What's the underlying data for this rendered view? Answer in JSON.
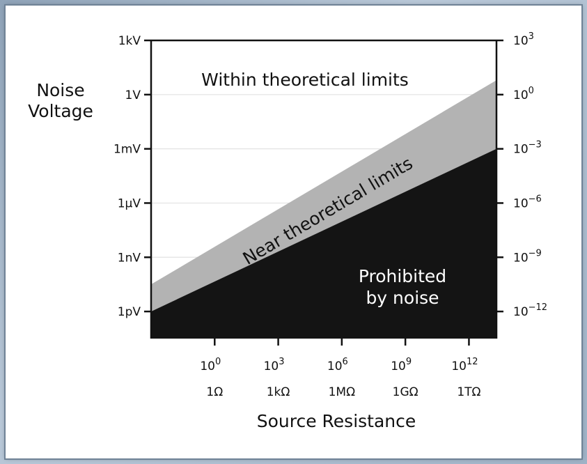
{
  "chart_data": {
    "type": "area",
    "ylabel": [
      "Noise",
      "Voltage"
    ],
    "xlabel": "Source Resistance",
    "x_scale": "log",
    "y_scale": "log",
    "x_axis": {
      "title": "Source Resistance",
      "exponent_labels": [
        "10",
        "10",
        "10",
        "10",
        "10"
      ],
      "exponents": [
        "0",
        "3",
        "6",
        "9",
        "12"
      ],
      "unit_labels": [
        "1Ω",
        "1kΩ",
        "1MΩ",
        "1GΩ",
        "1TΩ"
      ],
      "ticks_log10": [
        0,
        3,
        6,
        9,
        12
      ],
      "range_log10": [
        -3,
        13.3
      ]
    },
    "y_axis_left": {
      "title": [
        "Noise",
        "Voltage"
      ],
      "labels": [
        "1kV",
        "1V",
        "1mV",
        "1µV",
        "1nV",
        "1pV"
      ],
      "ticks_log10": [
        3,
        0,
        -3,
        -6,
        -9,
        -12
      ],
      "range_log10": [
        -13.5,
        3
      ]
    },
    "y_axis_right": {
      "bases": [
        "10",
        "10",
        "10",
        "10",
        "10",
        "10"
      ],
      "exponents": [
        "3",
        "0",
        "−3",
        "−6",
        "−9",
        "−12"
      ],
      "ticks_log10": [
        3,
        0,
        -3,
        -6,
        -9,
        -12
      ]
    },
    "regions": [
      {
        "name": "Within theoretical limits",
        "label_lines": [
          "Within theoretical limits"
        ],
        "color": "#ffffff"
      },
      {
        "name": "Near theoretical limits",
        "label_lines": [
          "Near theoretical limits"
        ],
        "color": "#b3b3b3",
        "upper_boundary_log10": [
          [
            -3,
            -10.5
          ],
          [
            13.3,
            0.8
          ]
        ]
      },
      {
        "name": "Prohibited by noise",
        "label_lines": [
          "Prohibited",
          "by noise"
        ],
        "color": "#141414",
        "upper_boundary_log10": [
          [
            -3,
            -12
          ],
          [
            13.3,
            -3
          ]
        ]
      }
    ],
    "grid": true
  }
}
